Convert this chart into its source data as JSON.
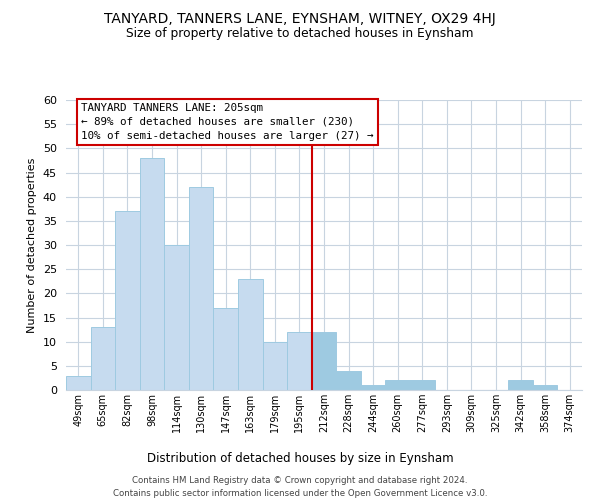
{
  "title": "TANYARD, TANNERS LANE, EYNSHAM, WITNEY, OX29 4HJ",
  "subtitle": "Size of property relative to detached houses in Eynsham",
  "xlabel": "Distribution of detached houses by size in Eynsham",
  "ylabel": "Number of detached properties",
  "bin_labels": [
    "49sqm",
    "65sqm",
    "82sqm",
    "98sqm",
    "114sqm",
    "130sqm",
    "147sqm",
    "163sqm",
    "179sqm",
    "195sqm",
    "212sqm",
    "228sqm",
    "244sqm",
    "260sqm",
    "277sqm",
    "293sqm",
    "309sqm",
    "325sqm",
    "342sqm",
    "358sqm",
    "374sqm"
  ],
  "bar_heights": [
    3,
    13,
    37,
    48,
    30,
    42,
    17,
    23,
    10,
    12,
    12,
    4,
    1,
    2,
    2,
    0,
    0,
    0,
    2,
    1,
    0
  ],
  "bar_color": "#c6dbef",
  "bar_edge_color": "#9ecae1",
  "highlight_bar_color": "#9ecae1",
  "highlight_bar_edge_color": "#6baed6",
  "vline_index": 10,
  "vline_color": "#cc0000",
  "ylim": [
    0,
    60
  ],
  "yticks": [
    0,
    5,
    10,
    15,
    20,
    25,
    30,
    35,
    40,
    45,
    50,
    55,
    60
  ],
  "annotation_title": "TANYARD TANNERS LANE: 205sqm",
  "annotation_line1": "← 89% of detached houses are smaller (230)",
  "annotation_line2": "10% of semi-detached houses are larger (27) →",
  "footer_line1": "Contains HM Land Registry data © Crown copyright and database right 2024.",
  "footer_line2": "Contains public sector information licensed under the Open Government Licence v3.0.",
  "bg_color": "#ffffff",
  "grid_color": "#c8d4e0"
}
